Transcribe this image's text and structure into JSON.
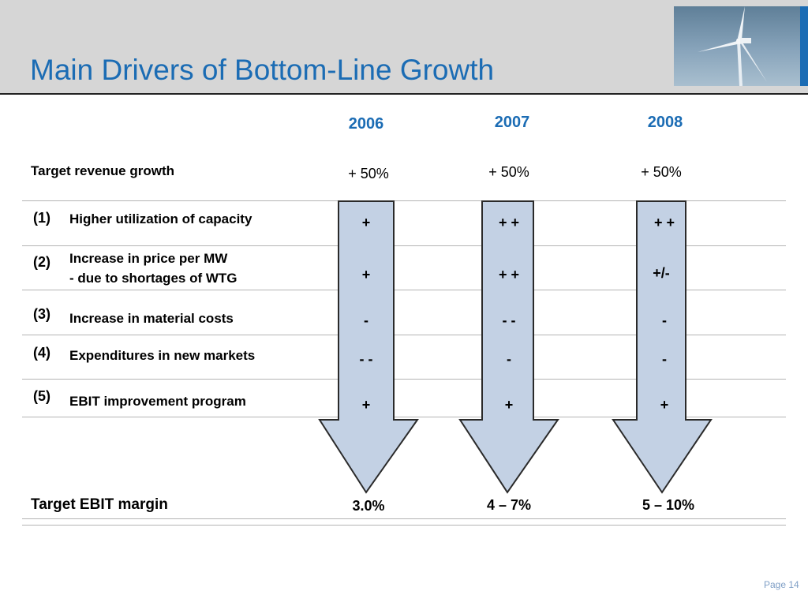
{
  "slide": {
    "title": "Main Drivers of Bottom-Line Growth",
    "page_label": "Page 14"
  },
  "years": [
    "2006",
    "2007",
    "2008"
  ],
  "revenue_row": {
    "label": "Target revenue growth",
    "values": [
      "+ 50%",
      "+ 50%",
      "+ 50%"
    ]
  },
  "drivers": [
    {
      "num": "(1)",
      "label": "Higher utilization of capacity",
      "effects": [
        "+",
        "+ +",
        "+ +"
      ]
    },
    {
      "num": "(2)",
      "label_line1": "Increase in price per MW",
      "label_line2": "- due to shortages of WTG",
      "effects": [
        "+",
        "+ +",
        "+/-"
      ]
    },
    {
      "num": "(3)",
      "label": "Increase in material costs",
      "effects": [
        "-",
        "- -",
        "-"
      ]
    },
    {
      "num": "(4)",
      "label": "Expenditures in new markets",
      "effects": [
        "- -",
        "-",
        "-"
      ]
    },
    {
      "num": "(5)",
      "label": "EBIT improvement program",
      "effects": [
        "+",
        "+",
        "+"
      ]
    }
  ],
  "ebit_row": {
    "label": "Target EBIT margin",
    "values": [
      "3.0%",
      "4 – 7%",
      "5 – 10%"
    ]
  },
  "colors": {
    "title_blue": "#1b6cb4",
    "arrow_fill": "#c3d1e4",
    "arrow_stroke": "#2a2a2a",
    "header_gray": "#d6d6d6"
  }
}
